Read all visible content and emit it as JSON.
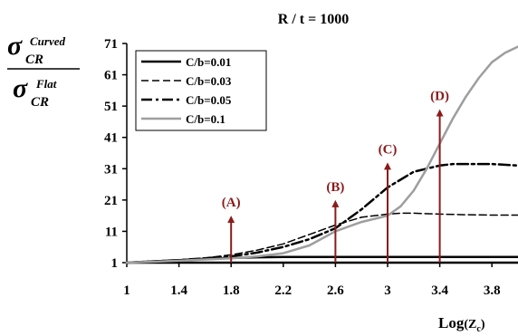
{
  "chart_data": {
    "type": "line",
    "title": "R / t = 1000",
    "xlabel_main": "Log",
    "xlabel_paren_open": "(",
    "xlabel_var": "Z",
    "xlabel_sub": "c",
    "xlabel_paren_close": ")",
    "ylabel": {
      "num_sym": "σ",
      "num_sub": "CR",
      "num_sup": "Curved",
      "den_sym": "σ",
      "den_sub": "CR",
      "den_sup": "Flat"
    },
    "xlim": [
      1,
      4
    ],
    "ylim": [
      1,
      71
    ],
    "x_ticks": [
      "1",
      "1.4",
      "1.8",
      "2.2",
      "2.6",
      "3",
      "3.4",
      "3.8"
    ],
    "x_tick_values": [
      1,
      1.4,
      1.8,
      2.2,
      2.6,
      3,
      3.4,
      3.8
    ],
    "y_ticks": [
      "1",
      "11",
      "21",
      "31",
      "41",
      "51",
      "61",
      "71"
    ],
    "y_tick_values": [
      1,
      11,
      21,
      31,
      41,
      51,
      61,
      71
    ],
    "grid": false,
    "legend_position": "top-left",
    "series": [
      {
        "name": "C/b=0.01",
        "style": "solid",
        "color": "#000000",
        "x": [
          1,
          1.2,
          1.4,
          1.6,
          1.8,
          2.0,
          2.2,
          2.4,
          2.6,
          2.8,
          3.0,
          3.2,
          3.4,
          3.6,
          3.8,
          4.0
        ],
        "y": [
          1,
          1.4,
          1.8,
          2.2,
          2.5,
          2.7,
          2.8,
          2.8,
          2.8,
          2.8,
          2.8,
          2.8,
          2.8,
          2.8,
          2.8,
          2.8
        ]
      },
      {
        "name": "C/b=0.03",
        "style": "dashed",
        "color": "#000000",
        "x": [
          1,
          1.2,
          1.4,
          1.6,
          1.8,
          2.0,
          2.2,
          2.4,
          2.6,
          2.8,
          3.0,
          3.1,
          3.2,
          3.4,
          3.6,
          3.8,
          4.0
        ],
        "y": [
          1,
          1.4,
          1.8,
          2.5,
          3.5,
          5.0,
          7.0,
          10.0,
          13.0,
          15.5,
          16.5,
          16.8,
          16.8,
          16.5,
          16.3,
          16.2,
          16.2
        ]
      },
      {
        "name": "C/b=0.05",
        "style": "dashdot",
        "color": "#000000",
        "x": [
          1,
          1.2,
          1.4,
          1.6,
          1.8,
          2.0,
          2.2,
          2.4,
          2.6,
          2.8,
          3.0,
          3.2,
          3.4,
          3.5,
          3.6,
          3.8,
          4.0
        ],
        "y": [
          1,
          1.4,
          1.8,
          2.4,
          3.0,
          4.2,
          6.0,
          8.5,
          12.0,
          18.0,
          25.0,
          30.0,
          32.0,
          32.5,
          32.5,
          32.5,
          32.0
        ]
      },
      {
        "name": "C/b=0.1",
        "style": "solid",
        "color": "#9e9e9e",
        "x": [
          1,
          1.2,
          1.4,
          1.6,
          1.8,
          2.0,
          2.2,
          2.4,
          2.6,
          2.8,
          3.0,
          3.1,
          3.2,
          3.3,
          3.4,
          3.5,
          3.6,
          3.7,
          3.8,
          3.9,
          4.0
        ],
        "y": [
          1,
          1.3,
          1.6,
          2.0,
          2.4,
          3.0,
          4.0,
          6.5,
          11.0,
          14.0,
          16.0,
          19.0,
          24.0,
          31.0,
          39.0,
          47.0,
          54.0,
          60.0,
          65.0,
          68.0,
          70.0
        ]
      }
    ],
    "annotations": [
      {
        "label": "(A)",
        "x": 1.8,
        "y_base": 1,
        "y_tip": 16
      },
      {
        "label": "(B)",
        "x": 2.6,
        "y_base": 1,
        "y_tip": 21
      },
      {
        "label": "(C)",
        "x": 3.0,
        "y_base": 1,
        "y_tip": 33
      },
      {
        "label": "(D)",
        "x": 3.4,
        "y_base": 1,
        "y_tip": 50
      }
    ],
    "arrow_color": "#8b1a1a"
  }
}
